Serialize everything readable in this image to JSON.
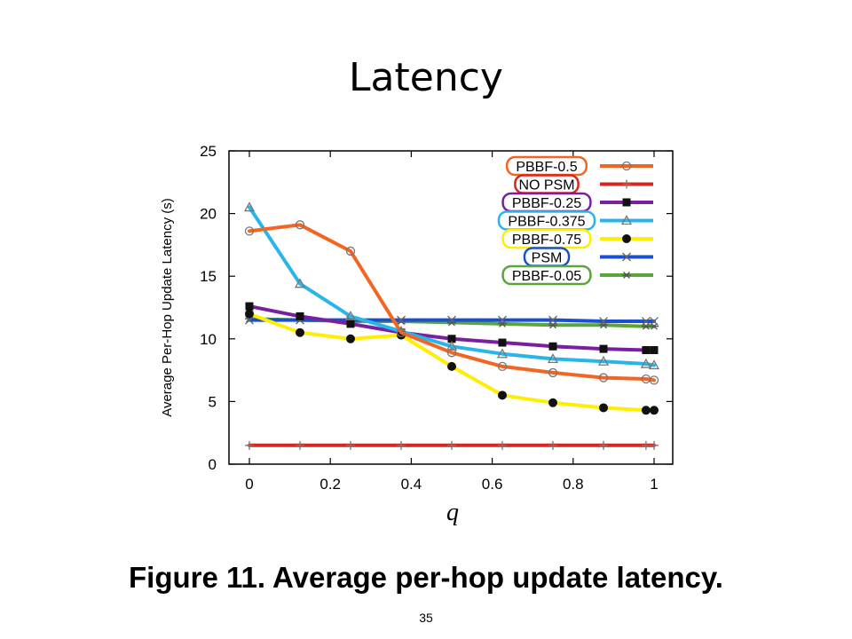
{
  "slide": {
    "title": "Latency",
    "caption": "Figure 11. Average per-hop update latency.",
    "page_number": "35"
  },
  "chart_data": {
    "type": "line",
    "xlabel": "q",
    "ylabel": "Average Per-Hop Update Latency (s)",
    "xlim": [
      0,
      1
    ],
    "ylim": [
      0,
      25
    ],
    "xticks": [
      0,
      0.2,
      0.4,
      0.6,
      0.8,
      1
    ],
    "xtick_labels": [
      "0",
      "0.2",
      "0.4",
      "0.6",
      "0.8",
      "1"
    ],
    "yticks": [
      0,
      5,
      10,
      15,
      20,
      25
    ],
    "ytick_labels": [
      "0",
      "5",
      "10",
      "15",
      "20",
      "25"
    ],
    "legend_position": "top-right",
    "x": [
      0,
      0.125,
      0.25,
      0.375,
      0.5,
      0.625,
      0.75,
      0.875,
      0.98,
      1
    ],
    "series": [
      {
        "name": "PBBF-0.5",
        "color": "#f26522",
        "marker": "circle",
        "values": [
          18.6,
          19.1,
          17.0,
          10.5,
          8.9,
          7.8,
          7.3,
          6.9,
          6.8,
          6.7
        ]
      },
      {
        "name": "NO PSM",
        "color": "#d7261e",
        "marker": "plus",
        "values": [
          1.5,
          1.5,
          1.5,
          1.5,
          1.5,
          1.5,
          1.5,
          1.5,
          1.5,
          1.5
        ]
      },
      {
        "name": "PBBF-0.25",
        "color": "#7a1fa2",
        "marker": "square",
        "values": [
          12.6,
          11.8,
          11.2,
          10.5,
          10.0,
          9.7,
          9.4,
          9.2,
          9.1,
          9.1
        ]
      },
      {
        "name": "PBBF-0.375",
        "color": "#29b5e8",
        "marker": "triangle",
        "values": [
          20.5,
          14.4,
          11.8,
          10.6,
          9.4,
          8.8,
          8.4,
          8.2,
          8.0,
          7.9
        ]
      },
      {
        "name": "PBBF-0.75",
        "color": "#ffee00",
        "marker": "dot",
        "values": [
          12.0,
          10.5,
          10.0,
          10.3,
          7.8,
          5.5,
          4.9,
          4.5,
          4.3,
          4.3
        ]
      },
      {
        "name": "PSM",
        "color": "#1a4fd1",
        "marker": "x",
        "values": [
          11.5,
          11.5,
          11.5,
          11.5,
          11.5,
          11.5,
          11.5,
          11.4,
          11.4,
          11.4
        ]
      },
      {
        "name": "PBBF-0.05",
        "color": "#5aa63a",
        "marker": "star",
        "values": [
          11.6,
          11.5,
          11.4,
          11.4,
          11.3,
          11.2,
          11.1,
          11.1,
          11.0,
          11.0
        ]
      }
    ]
  }
}
